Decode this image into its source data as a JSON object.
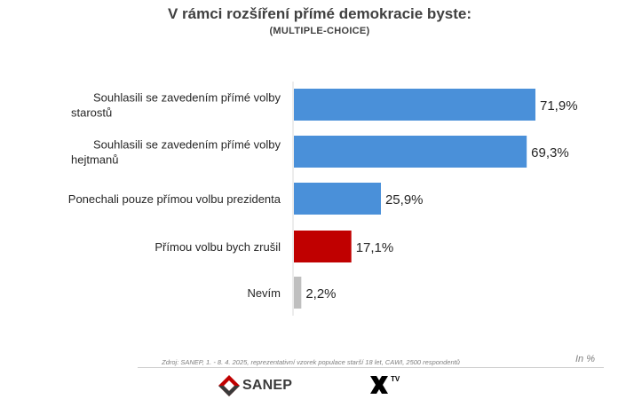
{
  "title": "V rámci rozšíření přímé demokracie byste:",
  "subtitle": "(MULTIPLE-CHOICE)",
  "chart_data": {
    "type": "bar",
    "orientation": "horizontal",
    "categories": [
      [
        "Souhlasili se zavedením přímé volby",
        "starostů"
      ],
      [
        "Souhlasili se zavedením přímé volby",
        "hejtmanů"
      ],
      [
        "Ponechali pouze přímou volbu prezidenta"
      ],
      [
        "Přímou volbu bych zrušil"
      ],
      [
        "Nevím"
      ]
    ],
    "values": [
      71.9,
      69.3,
      25.9,
      17.1,
      2.2
    ],
    "value_labels": [
      "71,9%",
      "69,3%",
      "25,9%",
      "17,1%",
      "2,2%"
    ],
    "colors": [
      "#4a90d9",
      "#4a90d9",
      "#4a90d9",
      "#c00000",
      "#bfbfbf"
    ],
    "xlim": [
      0,
      100
    ],
    "grid": false,
    "legend": "none"
  },
  "footer": {
    "source": "Zdroj: SANEP, 1. - 8. 4. 2025, reprezentativní vzorek populace starší 18 let, CAWI, 2500 respondentů",
    "unit": "In %",
    "logo_left": "SANEP",
    "logo_right_sup": "TV"
  },
  "icons": {
    "logo_left": "sanep-logo-icon",
    "logo_right": "x-tv-logo-icon"
  }
}
